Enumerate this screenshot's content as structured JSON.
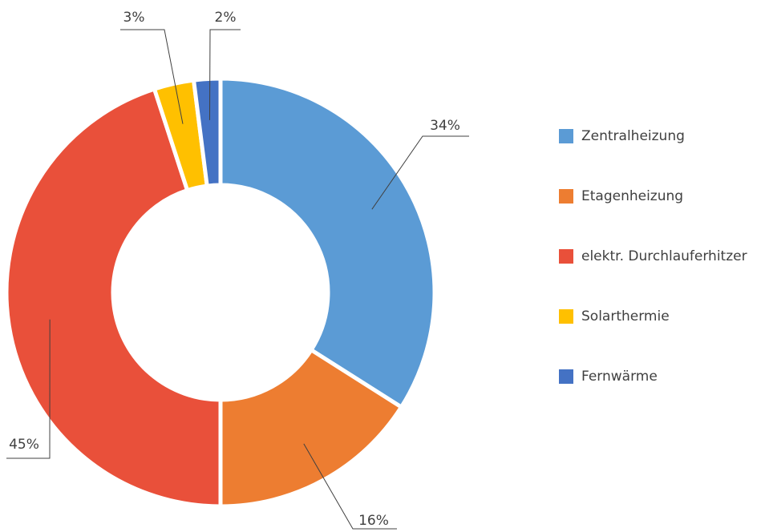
{
  "chart_data": {
    "type": "pie",
    "donut": true,
    "categories": [
      "Zentralheizung",
      "Etagenheizung",
      "elektr. Durchlauferhitzer",
      "Solarthermie",
      "Fernwärme"
    ],
    "values": [
      34,
      16,
      45,
      3,
      2
    ],
    "value_labels": [
      "34%",
      "16%",
      "45%",
      "3%",
      "2%"
    ],
    "colors": [
      "#5b9bd5",
      "#ed7d31",
      "#e9503a",
      "#ffc000",
      "#4472c4"
    ],
    "legend": "right"
  }
}
